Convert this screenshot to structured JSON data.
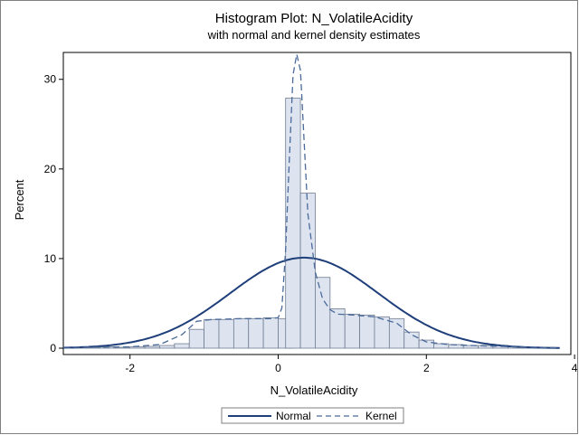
{
  "chart_data": {
    "type": "bar",
    "title": "Histogram Plot: N_VolatileAcidity",
    "subtitle": "with normal and kernel density estimates",
    "xlabel": "N_VolatileAcidity",
    "ylabel": "Percent",
    "xlim": [
      -2.9,
      3.95
    ],
    "ylim": [
      0,
      33
    ],
    "x_ticks": [
      -2,
      0,
      2,
      4
    ],
    "y_ticks": [
      0,
      10,
      20,
      30
    ],
    "grid": false,
    "legend_position": "bottom-center",
    "bin_width": 0.2,
    "bins": [
      {
        "x0": -2.8,
        "value": 0.1
      },
      {
        "x0": -2.6,
        "value": 0.1
      },
      {
        "x0": -2.4,
        "value": 0.15
      },
      {
        "x0": -2.2,
        "value": 0.1
      },
      {
        "x0": -2.0,
        "value": 0.15
      },
      {
        "x0": -1.8,
        "value": 0.2
      },
      {
        "x0": -1.6,
        "value": 0.3
      },
      {
        "x0": -1.4,
        "value": 0.5
      },
      {
        "x0": -1.2,
        "value": 2.1
      },
      {
        "x0": -1.0,
        "value": 3.2
      },
      {
        "x0": -0.8,
        "value": 3.2
      },
      {
        "x0": -0.6,
        "value": 3.3
      },
      {
        "x0": -0.4,
        "value": 3.3
      },
      {
        "x0": -0.2,
        "value": 3.4
      },
      {
        "x0": 0.0,
        "value": 3.3
      },
      {
        "x0": 0.1,
        "value": 27.9
      },
      {
        "x0": 0.3,
        "value": 17.3
      },
      {
        "x0": 0.5,
        "value": 7.9
      },
      {
        "x0": 0.7,
        "value": 4.4
      },
      {
        "x0": 0.9,
        "value": 3.8
      },
      {
        "x0": 1.1,
        "value": 3.7
      },
      {
        "x0": 1.3,
        "value": 3.5
      },
      {
        "x0": 1.5,
        "value": 3.3
      },
      {
        "x0": 1.7,
        "value": 1.8
      },
      {
        "x0": 1.9,
        "value": 0.9
      },
      {
        "x0": 2.1,
        "value": 0.5
      },
      {
        "x0": 2.3,
        "value": 0.4
      },
      {
        "x0": 2.5,
        "value": 0.3
      },
      {
        "x0": 2.7,
        "value": 0.3
      },
      {
        "x0": 2.9,
        "value": 0.3
      },
      {
        "x0": 3.1,
        "value": 0.15
      },
      {
        "x0": 3.3,
        "value": 0.1
      },
      {
        "x0": 3.5,
        "value": 0.05
      }
    ],
    "series": [
      {
        "name": "Normal",
        "style": "solid",
        "mean": 0.35,
        "peak": 10.1,
        "sd": 1.0
      },
      {
        "name": "Kernel",
        "style": "dashed",
        "x": [
          -2.9,
          -2.5,
          -2.0,
          -1.6,
          -1.3,
          -1.1,
          -0.9,
          -0.5,
          -0.1,
          0.0,
          0.05,
          0.1,
          0.15,
          0.2,
          0.25,
          0.3,
          0.35,
          0.4,
          0.5,
          0.6,
          0.7,
          0.8,
          1.0,
          1.3,
          1.6,
          1.8,
          2.0,
          2.3,
          2.6,
          3.0,
          3.4,
          3.8
        ],
        "y": [
          0.1,
          0.1,
          0.15,
          0.4,
          1.5,
          3.0,
          3.2,
          3.3,
          3.3,
          3.4,
          4.5,
          11.0,
          21.0,
          30.5,
          32.8,
          31.0,
          23.0,
          15.0,
          8.5,
          5.5,
          4.3,
          3.8,
          3.7,
          3.5,
          2.8,
          1.5,
          0.7,
          0.4,
          0.3,
          0.2,
          0.1,
          0.05
        ]
      }
    ],
    "colors": {
      "bar_fill": "#dde4f0",
      "bar_stroke": "#6f7c91",
      "normal_line": "#1f3f7a",
      "kernel_line": "#4a6a9a"
    }
  }
}
